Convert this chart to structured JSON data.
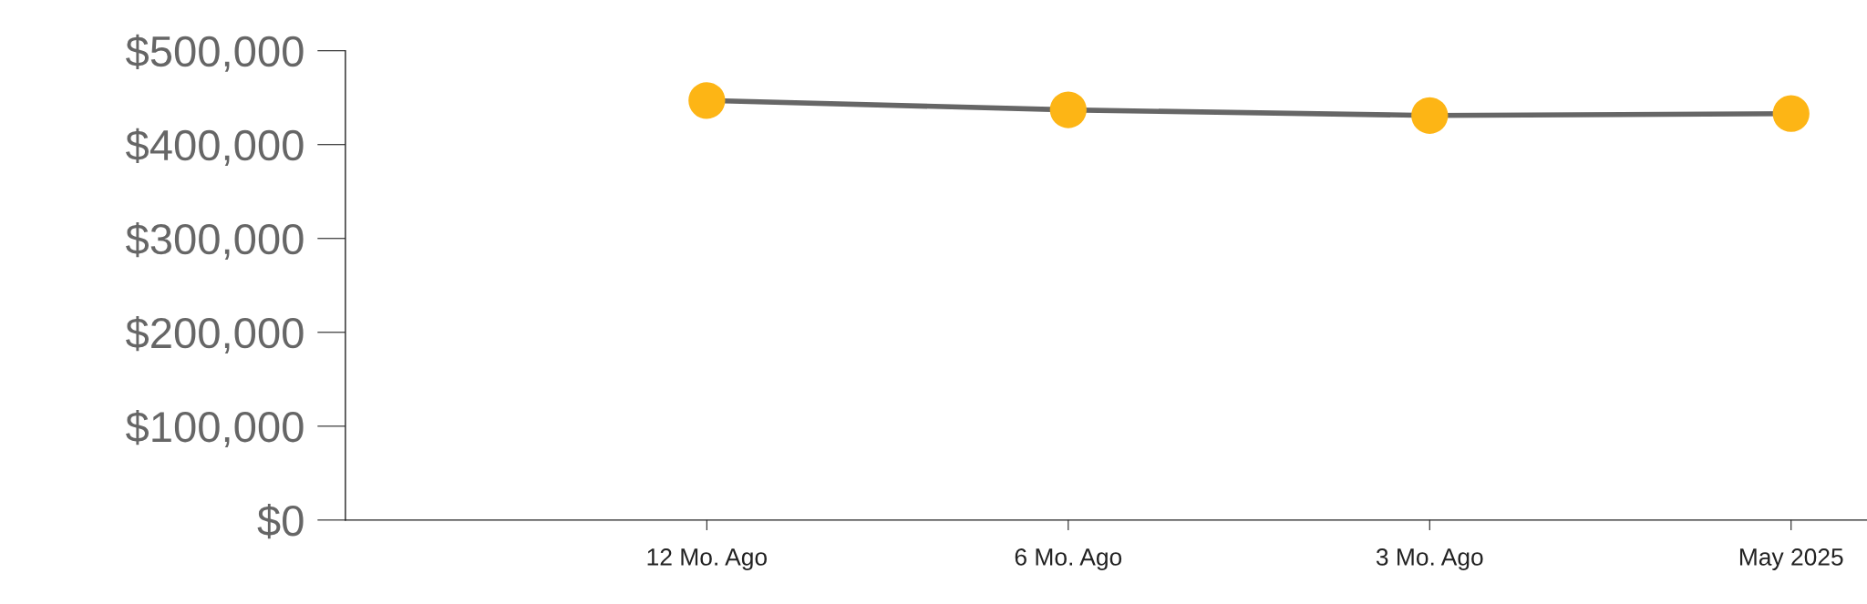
{
  "chart_data": {
    "type": "line",
    "categories": [
      "12 Mo. Ago",
      "6 Mo. Ago",
      "3 Mo. Ago",
      "May 2025"
    ],
    "series": [
      {
        "color": "#666666",
        "colors": [
          "#fdb515",
          "#fdb515",
          "#fdb515",
          "#fdb515"
        ],
        "values": [
          447000,
          437000,
          431000,
          433000
        ]
      }
    ],
    "ylim": [
      0,
      500000
    ],
    "yticks": [
      {
        "value": 0,
        "label": "$0"
      },
      {
        "value": 100000,
        "label": "$100,000"
      },
      {
        "value": 200000,
        "label": "$200,000"
      },
      {
        "value": 300000,
        "label": "$300,000"
      },
      {
        "value": 400000,
        "label": "$400,000"
      },
      {
        "value": 500000,
        "label": "$500,000"
      }
    ],
    "marker": "circle",
    "line_style": "solid",
    "grid": false
  }
}
